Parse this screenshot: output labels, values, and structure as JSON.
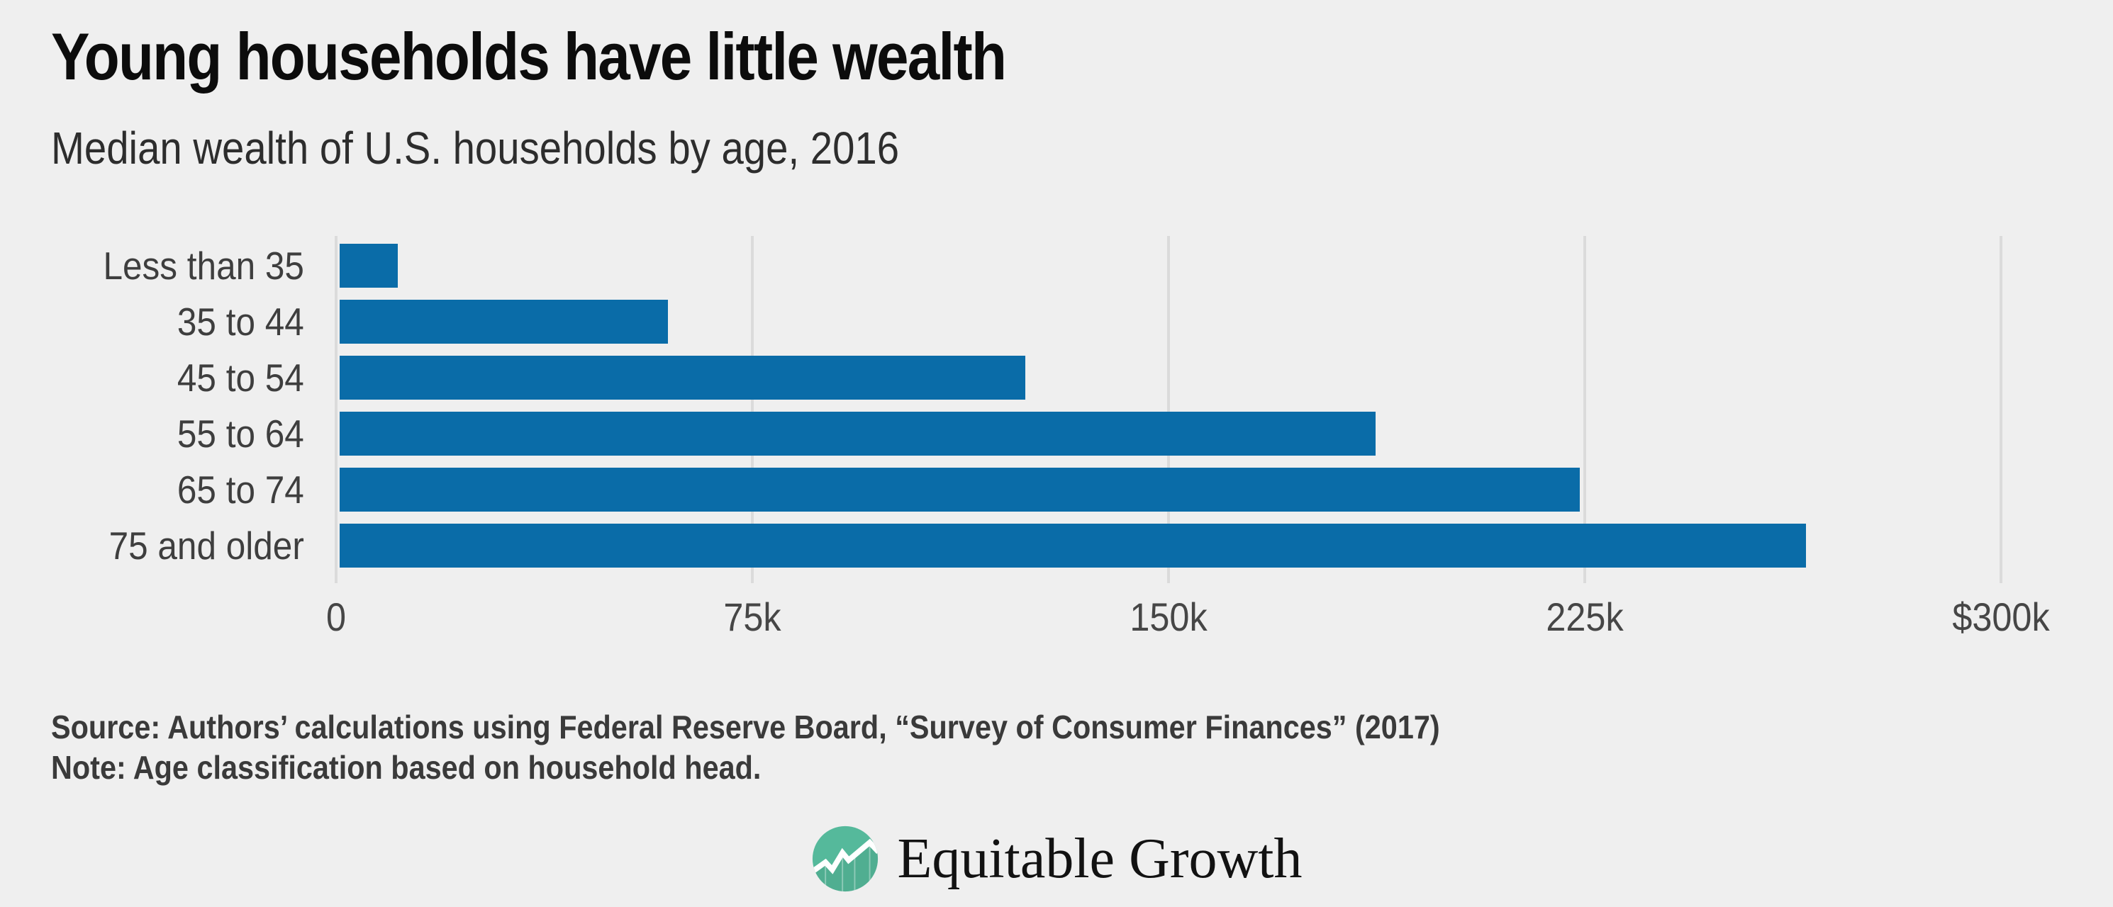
{
  "chart_data": {
    "type": "bar",
    "orientation": "horizontal",
    "title": "Young households have little wealth",
    "subtitle": "Median wealth of U.S. households by age, 2016",
    "categories": [
      "Less than 35",
      "35 to 44",
      "45 to 54",
      "55 to 64",
      "65 to 74",
      "75 and older"
    ],
    "values": [
      11100,
      59800,
      124200,
      187300,
      224100,
      264800
    ],
    "values_unit": "US dollars",
    "xlim": [
      0,
      300000
    ],
    "x_ticks": [
      {
        "value": 0,
        "label": "0"
      },
      {
        "value": 75000,
        "label": "75k"
      },
      {
        "value": 150000,
        "label": "150k"
      },
      {
        "value": 225000,
        "label": "225k"
      },
      {
        "value": 300000,
        "label": "$300k"
      }
    ],
    "grid": "vertical gridlines at x ticks",
    "legend": "none",
    "bar_color": "#0A6CA8",
    "gridline_color": "#DBDBDB",
    "background_color": "#EFEFEF"
  },
  "footer": {
    "source": "Source: Authors’ calculations using Federal Reserve Board, “Survey of Consumer Finances” (2017)",
    "note": "Note: Age classification based on household head."
  },
  "logo": {
    "wordmark": "Equitable Growth",
    "icon": "line-chart-circle-icon",
    "icon_color": "#55B99B"
  }
}
